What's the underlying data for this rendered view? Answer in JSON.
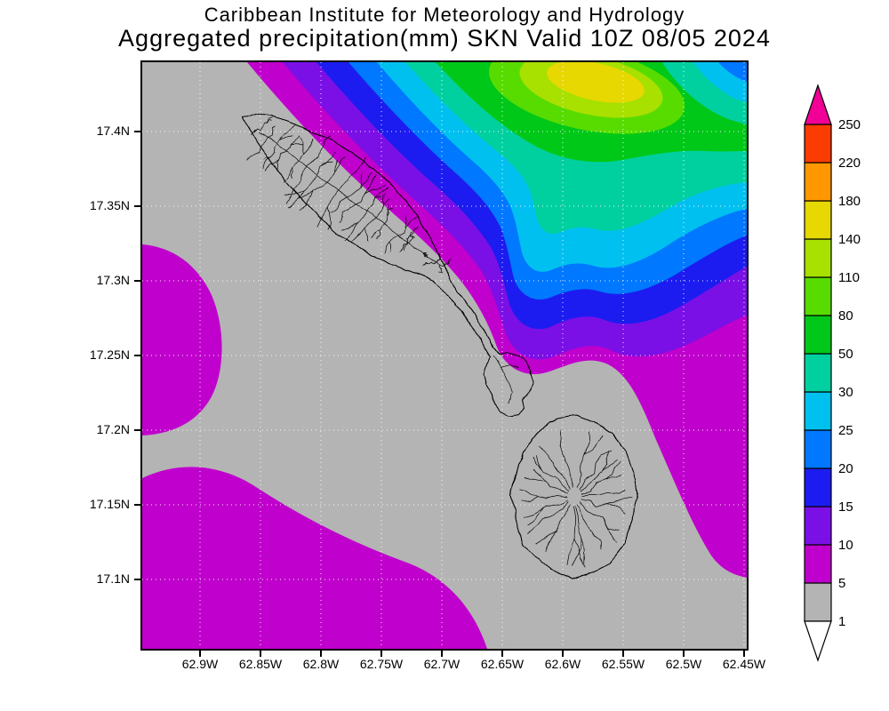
{
  "header": {
    "line1": "Caribbean Institute for Meteorology and Hydrology",
    "line2": "Aggregated precipitation(mm) SKN Valid 10Z 08/05 2024"
  },
  "axes": {
    "lat_labels": [
      "17.4N",
      "17.35N",
      "17.3N",
      "17.25N",
      "17.2N",
      "17.15N",
      "17.1N"
    ],
    "lon_labels": [
      "62.9W",
      "62.85W",
      "62.8W",
      "62.75W",
      "62.7W",
      "62.65W",
      "62.6W",
      "62.55W",
      "62.5W",
      "62.45W"
    ]
  },
  "colorbar": {
    "levels": [
      1,
      5,
      10,
      15,
      20,
      25,
      30,
      50,
      80,
      110,
      140,
      180,
      220,
      250
    ],
    "cell_colors": [
      "#b4b4b4",
      "#c000cc",
      "#7a10e6",
      "#1c1cf0",
      "#0078ff",
      "#00c0f0",
      "#00d0a0",
      "#00c818",
      "#58dc00",
      "#a8e000",
      "#e6d800",
      "#ff9800",
      "#fa3c00"
    ],
    "under_color": "#ffffff",
    "over_color": "#f00096"
  },
  "chart_data": {
    "type": "heatmap",
    "subtype": "filled-contour-precipitation-map",
    "title": "Aggregated precipitation(mm) SKN Valid 10Z 08/05 2024",
    "source_text": "Caribbean Institute for Meteorology and Hydrology",
    "units": "mm",
    "region_code": "SKN",
    "valid_time": "10Z 08/05 2024",
    "lat_ticks": [
      "17.4N",
      "17.35N",
      "17.3N",
      "17.25N",
      "17.2N",
      "17.15N",
      "17.1N"
    ],
    "lon_ticks": [
      "62.9W",
      "62.85W",
      "62.8W",
      "62.75W",
      "62.7W",
      "62.65W",
      "62.6W",
      "62.55W",
      "62.5W",
      "62.45W"
    ],
    "contour_levels_mm": [
      1,
      5,
      10,
      15,
      20,
      25,
      30,
      50,
      80,
      110,
      140,
      180,
      220,
      250
    ],
    "legend_position": "right",
    "grid": "white dotted graticule at each tick"
  }
}
